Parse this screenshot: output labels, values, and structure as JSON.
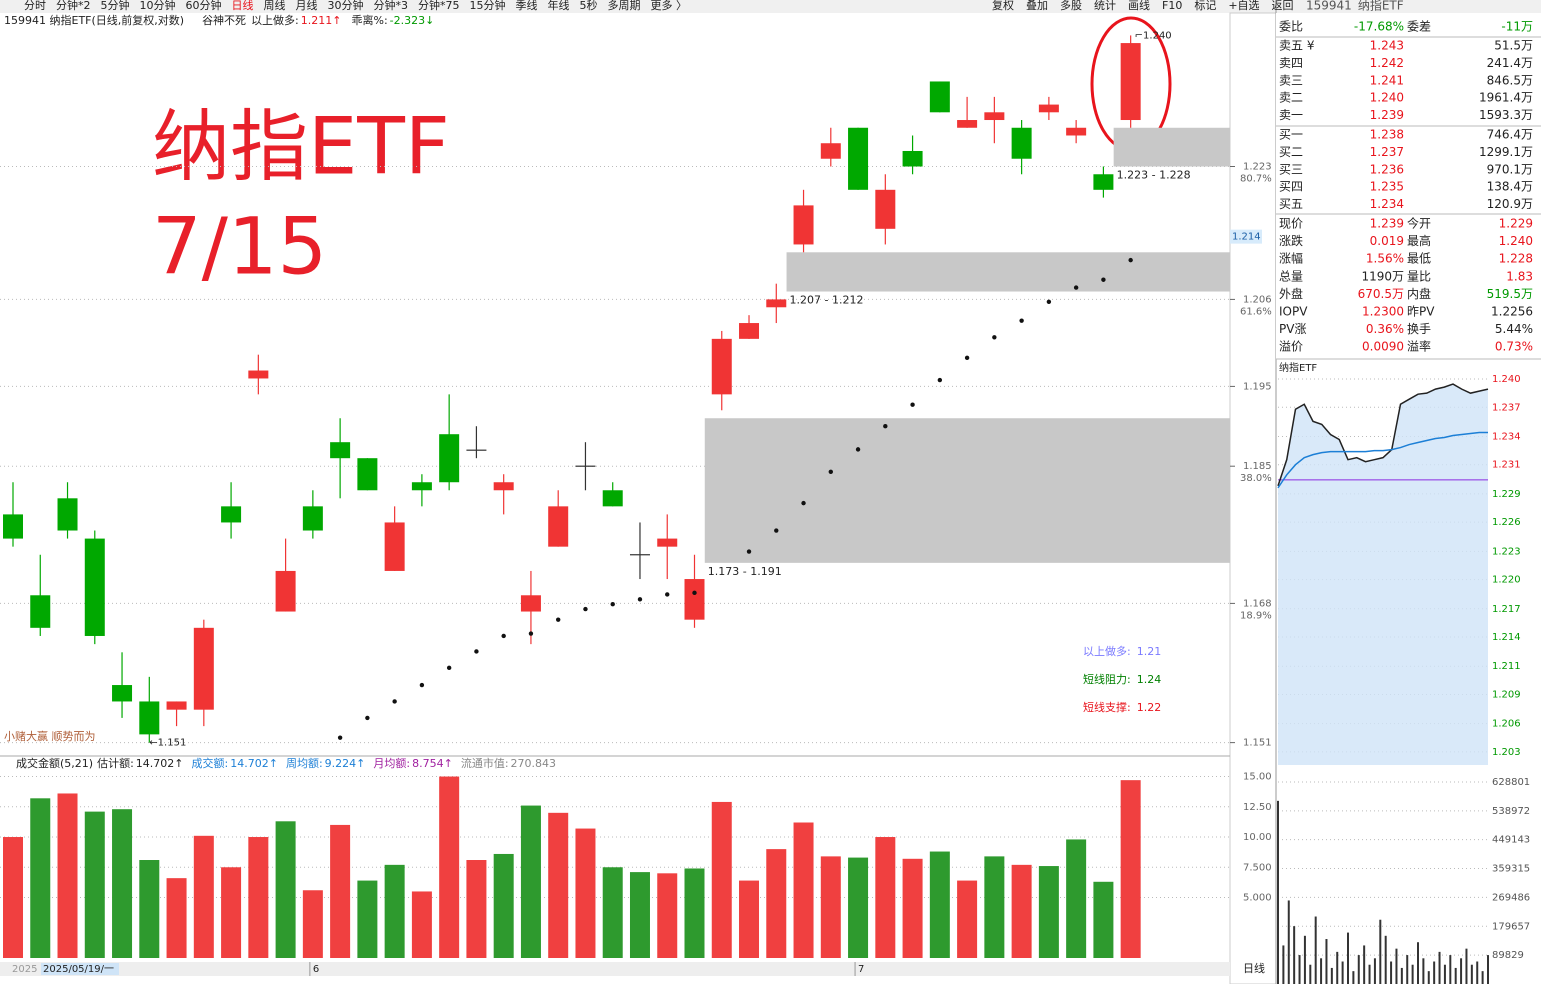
{
  "toolbar": {
    "left": [
      "分时",
      "分钟*2",
      "5分钟",
      "10分钟",
      "60分钟",
      "日线",
      "周线",
      "月线",
      "30分钟",
      "分钟*3",
      "分钟*75",
      "15分钟",
      "季线",
      "年线",
      "5秒",
      "多周期",
      "更多 〉"
    ],
    "active": 5,
    "right": [
      "复权",
      "叠加",
      "多股",
      "统计",
      "画线",
      "F10",
      "标记",
      "+自选",
      "返回"
    ]
  },
  "info": {
    "title": "159941 纳指ETF(日线,前复权,对数)",
    "indicator": "谷神不死",
    "above_label": "以上做多:",
    "above_value": "1.211↑",
    "bias_label": "乖离%:",
    "bias_value": "-2.323↓"
  },
  "overlay": {
    "title": "纳指ETF",
    "date": "7/15",
    "motto": "小赌大赢 顺势而为",
    "legend": [
      {
        "label": "以上做多:",
        "value": "1.21",
        "color": "#7a7aff"
      },
      {
        "label": "短线阻力:",
        "value": "1.24",
        "color": "#008000"
      },
      {
        "label": "短线支撑:",
        "value": "1.22",
        "color": "#e8141c"
      }
    ]
  },
  "volume_info": {
    "title": "成交金额(5,21)",
    "items": [
      {
        "label": "估计额:",
        "value": "14.702↑",
        "color": "#222"
      },
      {
        "label": "成交额:",
        "value": "14.702↑",
        "color": "#1c7fd6"
      },
      {
        "label": "周均额:",
        "value": "9.224↑",
        "color": "#1c7fd6"
      },
      {
        "label": "月均额:",
        "value": "8.754↑",
        "color": "#a020a0"
      },
      {
        "label": "流通市值:",
        "value": "270.843",
        "color": "#888"
      }
    ]
  },
  "x_axis": {
    "year": "2025",
    "labels": [
      {
        "index": 0,
        "label": "2025/05/19/一"
      },
      {
        "index": 11,
        "label": "6"
      },
      {
        "index": 31,
        "label": "7"
      }
    ],
    "period": "日线"
  },
  "chart_data": [
    {
      "type": "candlestick",
      "log": true,
      "ylim": [
        1.1495,
        1.2428
      ],
      "yticks": [
        1.223,
        1.206,
        1.195,
        1.185,
        1.168,
        1.151
      ],
      "ytick_pct": [
        {
          "value": 1.223,
          "label": "80.7%"
        },
        {
          "value": 1.206,
          "label": "61.6%"
        },
        {
          "value": 1.185,
          "label": "38.0%"
        },
        {
          "value": 1.168,
          "label": "18.9%"
        }
      ],
      "cursor_price": 1.214,
      "up_color": "#f03434",
      "down_color": "#00a800",
      "flat_color": "#333",
      "open": [
        1.179,
        1.169,
        1.181,
        1.176,
        1.158,
        1.156,
        1.155,
        1.155,
        1.18,
        1.196,
        1.167,
        1.18,
        1.188,
        1.186,
        1.172,
        1.183,
        1.189,
        1.187,
        1.182,
        1.167,
        1.175,
        1.185,
        1.182,
        1.174,
        1.175,
        1.166,
        1.194,
        1.201,
        1.205,
        1.213,
        1.224,
        1.228,
        1.215,
        1.225,
        1.234,
        1.228,
        1.229,
        1.228,
        1.23,
        1.227,
        1.222,
        1.229
      ],
      "high": [
        1.183,
        1.174,
        1.183,
        1.177,
        1.162,
        1.159,
        1.156,
        1.166,
        1.183,
        1.199,
        1.176,
        1.182,
        1.191,
        1.186,
        1.18,
        1.184,
        1.194,
        1.19,
        1.184,
        1.172,
        1.182,
        1.188,
        1.183,
        1.178,
        1.179,
        1.174,
        1.202,
        1.204,
        1.208,
        1.22,
        1.228,
        1.228,
        1.222,
        1.227,
        1.234,
        1.232,
        1.232,
        1.229,
        1.232,
        1.229,
        1.223,
        1.24
      ],
      "low": [
        1.175,
        1.164,
        1.176,
        1.163,
        1.154,
        1.151,
        1.153,
        1.153,
        1.176,
        1.194,
        1.167,
        1.176,
        1.181,
        1.182,
        1.172,
        1.18,
        1.182,
        1.186,
        1.179,
        1.163,
        1.175,
        1.182,
        1.18,
        1.171,
        1.171,
        1.165,
        1.192,
        1.201,
        1.203,
        1.212,
        1.223,
        1.22,
        1.213,
        1.222,
        1.23,
        1.228,
        1.226,
        1.222,
        1.229,
        1.226,
        1.219,
        1.228
      ],
      "close": [
        1.176,
        1.165,
        1.177,
        1.164,
        1.156,
        1.152,
        1.156,
        1.165,
        1.178,
        1.197,
        1.172,
        1.177,
        1.186,
        1.182,
        1.178,
        1.182,
        1.183,
        1.187,
        1.183,
        1.169,
        1.18,
        1.185,
        1.18,
        1.174,
        1.176,
        1.171,
        1.201,
        1.203,
        1.206,
        1.218,
        1.226,
        1.22,
        1.22,
        1.223,
        1.23,
        1.229,
        1.23,
        1.224,
        1.231,
        1.228,
        1.22,
        1.239
      ],
      "sar": [
        null,
        null,
        null,
        null,
        null,
        null,
        null,
        null,
        null,
        null,
        null,
        null,
        1.1516,
        1.154,
        1.156,
        1.158,
        1.1601,
        1.1621,
        1.164,
        1.1643,
        1.166,
        1.1673,
        1.1679,
        1.1685,
        1.1691,
        1.1693,
        null,
        1.1744,
        1.177,
        1.1804,
        1.1843,
        1.1871,
        1.19,
        1.1927,
        1.1958,
        1.1986,
        1.2012,
        1.2033,
        1.2057,
        1.2075,
        1.2085,
        1.211
      ],
      "zones": [
        {
          "start": 41,
          "low": 1.223,
          "high": 1.228,
          "label": "1.223 - 1.228"
        },
        {
          "start": 29,
          "low": 1.207,
          "high": 1.212,
          "label": "1.207 - 1.212"
        },
        {
          "start": 26,
          "low": 1.173,
          "high": 1.191,
          "label": "1.173 - 1.191"
        }
      ],
      "annotations": [
        {
          "index": 41,
          "value": 1.24,
          "label": "⌐1.240"
        },
        {
          "index": 5,
          "value": 1.151,
          "label": "←1.151"
        }
      ]
    },
    {
      "type": "bar",
      "ylim": [
        0,
        15.54
      ],
      "yticks": [
        {
          "value": 15,
          "label": "15.00"
        },
        {
          "value": 12.5,
          "label": "12.50"
        },
        {
          "value": 10,
          "label": "10.00"
        },
        {
          "value": 7.5,
          "label": "7.500"
        },
        {
          "value": 5,
          "label": "5.000"
        }
      ],
      "values": [
        10.0,
        13.2,
        13.6,
        12.1,
        12.3,
        8.1,
        6.6,
        10.1,
        7.5,
        10.0,
        11.3,
        5.6,
        11.0,
        6.4,
        7.7,
        5.5,
        15.0,
        8.1,
        8.6,
        12.6,
        12.0,
        10.7,
        7.5,
        7.1,
        7.0,
        7.4,
        12.9,
        6.4,
        9.0,
        11.2,
        8.4,
        8.3,
        10.0,
        8.2,
        8.8,
        6.4,
        8.4,
        7.7,
        7.6,
        9.8,
        6.3,
        14.7
      ],
      "colors": [
        "#f04040",
        "#2e9a2e",
        "#f04040",
        "#2e9a2e",
        "#2e9a2e",
        "#2e9a2e",
        "#f04040",
        "#f04040",
        "#f04040",
        "#f04040",
        "#2e9a2e",
        "#f04040",
        "#f04040",
        "#2e9a2e",
        "#2e9a2e",
        "#f04040",
        "#f04040",
        "#f04040",
        "#2e9a2e",
        "#2e9a2e",
        "#f04040",
        "#f04040",
        "#2e9a2e",
        "#2e9a2e",
        "#f04040",
        "#2e9a2e",
        "#f04040",
        "#f04040",
        "#f04040",
        "#f04040",
        "#f04040",
        "#2e9a2e",
        "#f04040",
        "#f04040",
        "#2e9a2e",
        "#f04040",
        "#2e9a2e",
        "#f04040",
        "#2e9a2e",
        "#2e9a2e",
        "#2e9a2e",
        "#f04040"
      ]
    },
    {
      "type": "line",
      "ylim": [
        1.2017,
        1.2407
      ],
      "ref": 1.23,
      "ref_color": "#8a2be2",
      "yticks": [
        {
          "value": 1.24,
          "label": "1.240"
        },
        {
          "value": 1.2372,
          "label": "1.237"
        },
        {
          "value": 1.2343,
          "label": "1.234"
        },
        {
          "value": 1.2315,
          "label": "1.231"
        },
        {
          "value": 1.2286,
          "label": "1.229"
        },
        {
          "value": 1.2258,
          "label": "1.226"
        },
        {
          "value": 1.2229,
          "label": "1.223"
        },
        {
          "value": 1.2201,
          "label": "1.220"
        },
        {
          "value": 1.2172,
          "label": "1.217"
        },
        {
          "value": 1.2144,
          "label": "1.214"
        },
        {
          "value": 1.2115,
          "label": "1.211"
        },
        {
          "value": 1.2087,
          "label": "1.209"
        },
        {
          "value": 1.2058,
          "label": "1.206"
        },
        {
          "value": 1.203,
          "label": "1.203"
        }
      ],
      "series": [
        {
          "color": "#222",
          "values": [
            1.2294,
            1.232,
            1.237,
            1.2375,
            1.2358,
            1.2355,
            1.2345,
            1.234,
            1.232,
            1.2322,
            1.2318,
            1.232,
            1.2322,
            1.233,
            1.2375,
            1.238,
            1.2385,
            1.2386,
            1.239,
            1.2392,
            1.2395,
            1.239,
            1.2386,
            1.2388,
            1.239
          ]
        },
        {
          "color": "#1c7fd6",
          "values": [
            1.2292,
            1.2305,
            1.2315,
            1.2322,
            1.2325,
            1.2327,
            1.2328,
            1.2328,
            1.2328,
            1.2328,
            1.2328,
            1.2329,
            1.2329,
            1.233,
            1.2332,
            1.2335,
            1.2337,
            1.2339,
            1.2341,
            1.2342,
            1.2344,
            1.2345,
            1.2346,
            1.2347,
            1.2347
          ]
        }
      ]
    },
    {
      "type": "bar",
      "ylim": [
        0,
        666000
      ],
      "yticks": [
        628801,
        538972,
        449143,
        359315,
        269486,
        179657,
        89829
      ],
      "color": "#333",
      "values": [
        570000,
        120000,
        260000,
        180000,
        90000,
        150000,
        60000,
        210000,
        80000,
        140000,
        50000,
        100000,
        70000,
        160000,
        40000,
        90000,
        120000,
        60000,
        80000,
        200000,
        150000,
        70000,
        110000,
        50000,
        90000,
        60000,
        130000,
        80000,
        40000,
        70000,
        100000,
        60000,
        90000,
        50000,
        80000,
        110000,
        60000,
        70000,
        40000,
        90000
      ]
    }
  ],
  "quote": {
    "code": "159941",
    "name": "纳指ETF",
    "ratio": [
      "委比",
      "-17.68%",
      "委差",
      "-11万"
    ],
    "asks": [
      [
        "卖五 ¥",
        "1.243",
        "51.5万"
      ],
      [
        "卖四",
        "1.242",
        "241.4万"
      ],
      [
        "卖三",
        "1.241",
        "846.5万"
      ],
      [
        "卖二",
        "1.240",
        "1961.4万"
      ],
      [
        "卖一",
        "1.239",
        "1593.3万"
      ]
    ],
    "bids": [
      [
        "买一",
        "1.238",
        "746.4万"
      ],
      [
        "买二",
        "1.237",
        "1299.1万"
      ],
      [
        "买三",
        "1.236",
        "970.1万"
      ],
      [
        "买四",
        "1.235",
        "138.4万"
      ],
      [
        "买五",
        "1.234",
        "120.9万"
      ]
    ],
    "stats": [
      [
        "现价",
        "1.239",
        "今开",
        "1.229"
      ],
      [
        "涨跌",
        "0.019",
        "最高",
        "1.240"
      ],
      [
        "涨幅",
        "1.56%",
        "最低",
        "1.228"
      ],
      [
        "总量",
        "1190万",
        "量比",
        "1.83"
      ],
      [
        "外盘",
        "670.5万",
        "内盘",
        "519.5万"
      ],
      [
        "IOPV",
        "1.2300",
        "昨PV",
        "1.2256"
      ],
      [
        "PV涨",
        "0.36%",
        "换手",
        "5.44%"
      ],
      [
        "溢价",
        "0.0090",
        "溢率",
        "0.73%"
      ]
    ],
    "stat_colors": [
      [
        "#e8141c",
        "#e8141c"
      ],
      [
        "#e8141c",
        "#e8141c"
      ],
      [
        "#e8141c",
        "#e8141c"
      ],
      [
        "#222",
        "#e8141c"
      ],
      [
        "#e8141c",
        "#009900"
      ],
      [
        "#e8141c",
        "#222"
      ],
      [
        "#e8141c",
        "#222"
      ],
      [
        "#e8141c",
        "#e8141c"
      ]
    ],
    "intraday_title": "纳指ETF"
  }
}
